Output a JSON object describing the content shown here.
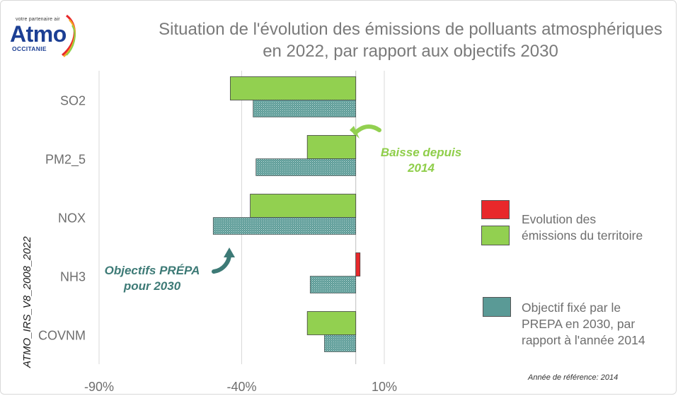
{
  "logo": {
    "tagline": "votre partenaire air",
    "word": "Atmo",
    "sub": "OCCITANIE"
  },
  "title_lines": [
    "Situation de l'évolution des émissions de polluants atmosphériques",
    "en 2022, par rapport aux objectifs 2030"
  ],
  "source_label": "ATMO_IRS_V8_2008_2022",
  "reference_note": "Année de référence: 2014",
  "colors": {
    "red": "#e8282b",
    "green": "#92d050",
    "teal": "#5a9a96",
    "teal_annotation": "#3d7a76",
    "green_annotation": "#8fce4a",
    "grid": "#d9d9d9",
    "axis_text": "#6e6e6e"
  },
  "annotations": {
    "baisse": [
      "Baisse depuis",
      "2014"
    ],
    "objectifs": [
      "Objectifs PRÉPA",
      "pour 2030"
    ]
  },
  "legend": [
    {
      "label_lines": [
        "Evolution des",
        "émissions du territoire"
      ],
      "swatches": [
        "red",
        "green"
      ]
    },
    {
      "label_lines": [
        "Objectif fixé par le",
        "PREPA en 2030, par",
        "rapport à l'année 2014"
      ],
      "swatches": [
        "teal"
      ]
    }
  ],
  "chart_data": {
    "type": "bar",
    "orientation": "horizontal",
    "categories": [
      "SO2",
      "PM2_5",
      "NOX",
      "NH3",
      "COVNM"
    ],
    "x_ticks": [
      "-90%",
      "-40%",
      "10%"
    ],
    "xlim": [
      -90,
      10
    ],
    "grid": true,
    "legend_position": "right",
    "series": [
      {
        "name": "Evolution des émissions du territoire",
        "values": [
          -44,
          -17,
          -37,
          1.5,
          -17
        ],
        "colors": [
          "green",
          "green",
          "green",
          "red",
          "green"
        ]
      },
      {
        "name": "Objectif fixé par le PREPA en 2030, par rapport à l'année 2014",
        "values": [
          -36,
          -35,
          -50,
          -16,
          -11
        ],
        "color": "teal"
      }
    ]
  }
}
